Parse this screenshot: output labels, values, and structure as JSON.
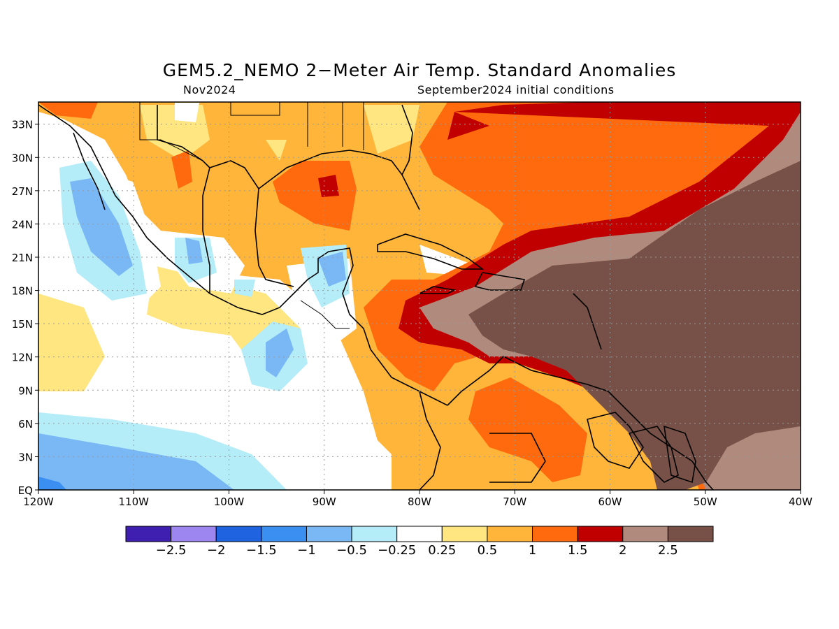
{
  "title": "GEM5.2_NEMO 2−Meter Air Temp. Standard Anomalies",
  "subtitle_left": "Nov2024",
  "subtitle_right": "September2024 initial conditions",
  "map": {
    "lon_range": [
      -120,
      -40
    ],
    "lat_range": [
      0,
      35
    ],
    "grid": "dotted",
    "x_ticks": [
      "120W",
      "110W",
      "100W",
      "90W",
      "80W",
      "70W",
      "60W",
      "50W",
      "40W"
    ],
    "y_ticks": [
      "EQ",
      "3N",
      "6N",
      "9N",
      "12N",
      "15N",
      "18N",
      "21N",
      "24N",
      "27N",
      "30N",
      "33N"
    ]
  },
  "colorbar": {
    "colors": [
      "#3e1fb0",
      "#9d86f0",
      "#1f63e0",
      "#3b8ff0",
      "#7ab8f5",
      "#b4ecf8",
      "#ffffff",
      "#ffe680",
      "#ffb43a",
      "#fe6a0d",
      "#c00000",
      "#b08a7c",
      "#775147"
    ],
    "labels": [
      "−2.5",
      "−2",
      "−1.5",
      "−1",
      "−0.5",
      "−0.25",
      "0.25",
      "0.5",
      "1",
      "1.5",
      "2",
      "2.5"
    ]
  }
}
